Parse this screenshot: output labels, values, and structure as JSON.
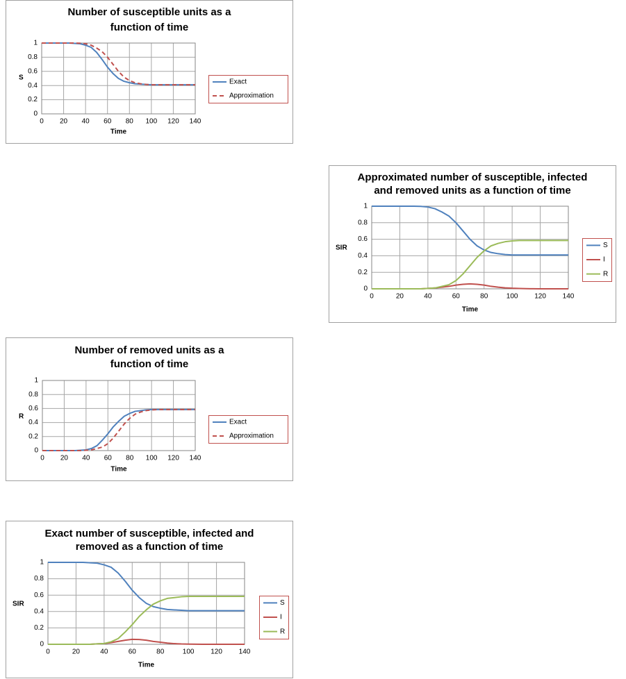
{
  "chart_data": [
    {
      "type": "line",
      "title": [
        "Number of susceptible units as a",
        "function of time"
      ],
      "xlabel": "Time",
      "ylabel": "S",
      "x": [
        0,
        5,
        10,
        15,
        20,
        25,
        30,
        35,
        40,
        45,
        50,
        55,
        60,
        65,
        70,
        75,
        80,
        85,
        90,
        95,
        100,
        105,
        110,
        115,
        120,
        125,
        130,
        135,
        140
      ],
      "series": [
        {
          "name": "Exact",
          "color": "#4f81bd",
          "dashed": false,
          "values": [
            1,
            1,
            1,
            1,
            1,
            1,
            0.995,
            0.99,
            0.97,
            0.94,
            0.87,
            0.77,
            0.66,
            0.57,
            0.5,
            0.46,
            0.44,
            0.425,
            0.42,
            0.415,
            0.41,
            0.41,
            0.41,
            0.41,
            0.41,
            0.41,
            0.41,
            0.41,
            0.41
          ]
        },
        {
          "name": "Approximation",
          "color": "#c0504d",
          "dashed": true,
          "values": [
            1,
            1,
            1,
            1,
            1,
            1,
            1,
            0.998,
            0.99,
            0.97,
            0.93,
            0.88,
            0.8,
            0.7,
            0.6,
            0.52,
            0.47,
            0.44,
            0.425,
            0.415,
            0.41,
            0.41,
            0.41,
            0.41,
            0.41,
            0.41,
            0.41,
            0.41,
            0.41
          ]
        }
      ],
      "xlim": [
        0,
        140
      ],
      "xticks": [
        0,
        20,
        40,
        60,
        80,
        100,
        120,
        140
      ],
      "ylim": [
        0,
        1
      ],
      "yticks": [
        0,
        0.2,
        0.4,
        0.6,
        0.8,
        1
      ],
      "grid": true,
      "legend": "right"
    },
    {
      "type": "line",
      "title": [
        "Approximated number of susceptible, infected",
        "and removed units as a function of time"
      ],
      "xlabel": "Time",
      "ylabel": "SIR",
      "x": [
        0,
        5,
        10,
        15,
        20,
        25,
        30,
        35,
        40,
        45,
        50,
        55,
        60,
        65,
        70,
        75,
        80,
        85,
        90,
        95,
        100,
        105,
        110,
        115,
        120,
        125,
        130,
        135,
        140
      ],
      "series": [
        {
          "name": "S",
          "color": "#4f81bd",
          "dashed": false,
          "values": [
            1,
            1,
            1,
            1,
            1,
            1,
            1,
            0.998,
            0.99,
            0.97,
            0.93,
            0.88,
            0.8,
            0.7,
            0.6,
            0.52,
            0.47,
            0.44,
            0.425,
            0.415,
            0.41,
            0.41,
            0.41,
            0.41,
            0.41,
            0.41,
            0.41,
            0.41,
            0.41
          ]
        },
        {
          "name": "I",
          "color": "#c0504d",
          "dashed": false,
          "values": [
            0,
            0,
            0,
            0,
            0,
            0,
            0,
            0,
            0.005,
            0.01,
            0.02,
            0.03,
            0.045,
            0.055,
            0.06,
            0.055,
            0.045,
            0.03,
            0.02,
            0.012,
            0.007,
            0.004,
            0.002,
            0.001,
            0,
            0,
            0,
            0,
            0
          ]
        },
        {
          "name": "R",
          "color": "#9bbb59",
          "dashed": false,
          "values": [
            0,
            0,
            0,
            0,
            0,
            0,
            0,
            0,
            0.005,
            0.01,
            0.03,
            0.05,
            0.1,
            0.18,
            0.28,
            0.38,
            0.46,
            0.52,
            0.55,
            0.57,
            0.58,
            0.585,
            0.585,
            0.585,
            0.585,
            0.585,
            0.585,
            0.585,
            0.585
          ]
        }
      ],
      "xlim": [
        0,
        140
      ],
      "xticks": [
        0,
        20,
        40,
        60,
        80,
        100,
        120,
        140
      ],
      "ylim": [
        0,
        1
      ],
      "yticks": [
        0,
        0.2,
        0.4,
        0.6,
        0.8,
        1
      ],
      "grid": true,
      "legend": "right"
    },
    {
      "type": "line",
      "title": [
        "Number of removed units as a",
        "function of time"
      ],
      "xlabel": "Time",
      "ylabel": "R",
      "x": [
        0,
        5,
        10,
        15,
        20,
        25,
        30,
        35,
        40,
        45,
        50,
        55,
        60,
        65,
        70,
        75,
        80,
        85,
        90,
        95,
        100,
        105,
        110,
        115,
        120,
        125,
        130,
        135,
        140
      ],
      "series": [
        {
          "name": "Exact",
          "color": "#4f81bd",
          "dashed": false,
          "values": [
            0,
            0,
            0,
            0,
            0,
            0,
            0,
            0.005,
            0.01,
            0.03,
            0.07,
            0.15,
            0.24,
            0.34,
            0.42,
            0.49,
            0.53,
            0.56,
            0.57,
            0.58,
            0.585,
            0.585,
            0.585,
            0.585,
            0.585,
            0.585,
            0.585,
            0.585,
            0.585
          ]
        },
        {
          "name": "Approximation",
          "color": "#c0504d",
          "dashed": true,
          "values": [
            0,
            0,
            0,
            0,
            0,
            0,
            0,
            0,
            0.005,
            0.01,
            0.03,
            0.05,
            0.1,
            0.18,
            0.28,
            0.38,
            0.46,
            0.52,
            0.55,
            0.57,
            0.58,
            0.585,
            0.585,
            0.585,
            0.585,
            0.585,
            0.585,
            0.585,
            0.585
          ]
        }
      ],
      "xlim": [
        0,
        140
      ],
      "xticks": [
        0,
        20,
        40,
        60,
        80,
        100,
        120,
        140
      ],
      "ylim": [
        0,
        1
      ],
      "yticks": [
        0,
        0.2,
        0.4,
        0.6,
        0.8,
        1
      ],
      "grid": true,
      "legend": "right"
    },
    {
      "type": "line",
      "title": [
        "Exact number of susceptible, infected and",
        "removed as a function of time"
      ],
      "xlabel": "Time",
      "ylabel": "SIR",
      "x": [
        0,
        5,
        10,
        15,
        20,
        25,
        30,
        35,
        40,
        45,
        50,
        55,
        60,
        65,
        70,
        75,
        80,
        85,
        90,
        95,
        100,
        105,
        110,
        115,
        120,
        125,
        130,
        135,
        140
      ],
      "series": [
        {
          "name": "S",
          "color": "#4f81bd",
          "dashed": false,
          "values": [
            1,
            1,
            1,
            1,
            1,
            1,
            0.995,
            0.99,
            0.97,
            0.94,
            0.87,
            0.77,
            0.66,
            0.57,
            0.5,
            0.46,
            0.44,
            0.425,
            0.42,
            0.415,
            0.41,
            0.41,
            0.41,
            0.41,
            0.41,
            0.41,
            0.41,
            0.41,
            0.41
          ]
        },
        {
          "name": "I",
          "color": "#c0504d",
          "dashed": false,
          "values": [
            0,
            0,
            0,
            0,
            0,
            0,
            0,
            0.005,
            0.01,
            0.02,
            0.035,
            0.05,
            0.06,
            0.058,
            0.05,
            0.035,
            0.025,
            0.015,
            0.008,
            0.004,
            0.002,
            0.001,
            0,
            0,
            0,
            0,
            0,
            0,
            0
          ]
        },
        {
          "name": "R",
          "color": "#9bbb59",
          "dashed": false,
          "values": [
            0,
            0,
            0,
            0,
            0,
            0,
            0,
            0.005,
            0.01,
            0.03,
            0.07,
            0.15,
            0.24,
            0.34,
            0.42,
            0.49,
            0.53,
            0.56,
            0.57,
            0.58,
            0.585,
            0.585,
            0.585,
            0.585,
            0.585,
            0.585,
            0.585,
            0.585,
            0.585
          ]
        }
      ],
      "xlim": [
        0,
        140
      ],
      "xticks": [
        0,
        20,
        40,
        60,
        80,
        100,
        120,
        140
      ],
      "ylim": [
        0,
        1
      ],
      "yticks": [
        0,
        0.2,
        0.4,
        0.6,
        0.8,
        1
      ],
      "grid": true,
      "legend": "right"
    }
  ]
}
